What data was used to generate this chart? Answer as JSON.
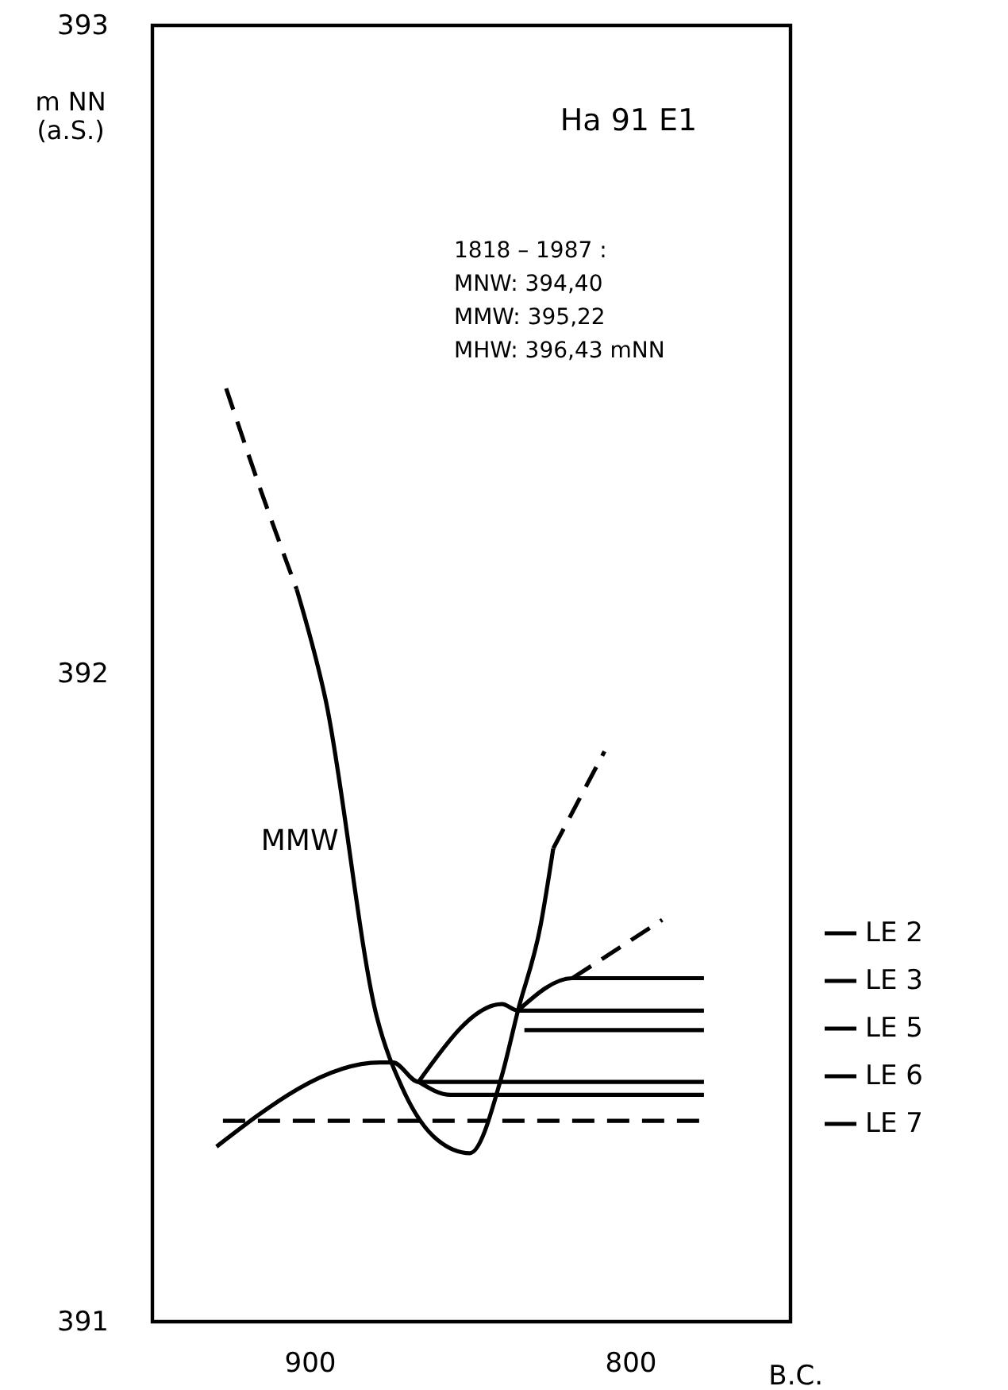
{
  "chart_data": {
    "type": "line",
    "title": "Ha 91  E1",
    "xlabel": "B.C.",
    "ylabel": "m NN\n(a.S.)",
    "xlim": [
      949,
      750
    ],
    "xticks": [
      900,
      800
    ],
    "ylim": [
      391,
      393
    ],
    "yticks": [
      391,
      392,
      393
    ],
    "legend": "right",
    "annotations": [
      "1818 – 1987 :",
      "MNW:   394,40",
      "MMW:   395,22",
      "MHW:   396,43 mNN",
      {
        "text": "MMW",
        "x": 887,
        "y": 391.74
      }
    ],
    "series": [
      {
        "type": "line",
        "color": "#000000",
        "line_style": "solid",
        "x": [
          904,
          895,
          879,
          871,
          860,
          850,
          840,
          835,
          828,
          824
        ],
        "values": [
          392.13,
          391.96,
          391.47,
          391.36,
          391.28,
          391.26,
          391.38,
          391.48,
          391.61,
          391.73
        ]
      },
      {
        "type": "line",
        "color": "#000000",
        "line_style": "dashed",
        "x": [
          926,
          915,
          904
        ],
        "values": [
          392.44,
          392.28,
          392.13
        ]
      },
      {
        "type": "line",
        "color": "#000000",
        "line_style": "dashed",
        "x": [
          824,
          808
        ],
        "values": [
          391.73,
          391.88
        ]
      },
      {
        "type": "line",
        "name": "LE 2",
        "color": "#000000",
        "line_style": "solid",
        "x": [
          835,
          818,
          777
        ],
        "values": [
          391.48,
          391.53,
          391.53
        ]
      },
      {
        "type": "line",
        "color": "#000000",
        "line_style": "dashed",
        "x": [
          818,
          790
        ],
        "values": [
          391.53,
          391.62
        ]
      },
      {
        "type": "line",
        "name": "LE 3",
        "color": "#000000",
        "line_style": "solid",
        "x": [
          866,
          840,
          835,
          777
        ],
        "values": [
          391.37,
          391.49,
          391.48,
          391.48
        ]
      },
      {
        "type": "line",
        "name": "LE 5",
        "color": "#000000",
        "line_style": "solid",
        "x": [
          833,
          777
        ],
        "values": [
          391.45,
          391.45
        ]
      },
      {
        "type": "line",
        "name": "LE 6",
        "color": "#000000",
        "line_style": "solid",
        "x": [
          929,
          878,
          874,
          866,
          777
        ],
        "values": [
          391.27,
          391.4,
          391.4,
          391.37,
          391.37
        ]
      },
      {
        "type": "line",
        "name": "LE 7",
        "color": "#000000",
        "line_style": "solid",
        "x": [
          866,
          856,
          777
        ],
        "values": [
          391.37,
          391.35,
          391.35
        ]
      },
      {
        "type": "line",
        "color": "#000000",
        "line_style": "dashed",
        "x": [
          927,
          776
        ],
        "values": [
          391.31,
          391.31
        ]
      }
    ]
  }
}
